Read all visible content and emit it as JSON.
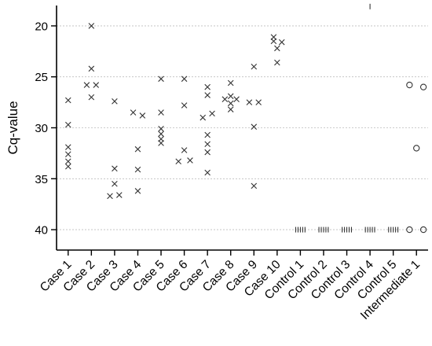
{
  "chart_data": {
    "type": "scatter",
    "ylabel": "Cq-value",
    "xlabel": "",
    "title": "",
    "y_axis": {
      "inverted": true,
      "ylim": [
        18,
        42
      ],
      "ticks": [
        20,
        25,
        30,
        35,
        40
      ]
    },
    "grid": "horizontal dotted at y ticks",
    "legend": "none",
    "categories": [
      "Case 1",
      "Case 2",
      "Case 3",
      "Case 4",
      "Case 5",
      "Case 6",
      "Case 7",
      "Case 8",
      "Case 9",
      "Case 10",
      "Control 1",
      "Control 2",
      "Control 3",
      "Control 4",
      "Control 5",
      "Intermediate 1"
    ],
    "series": [
      {
        "marker": "x",
        "points": [
          {
            "cat": 0,
            "dx": 0.0,
            "y": 27.3
          },
          {
            "cat": 0,
            "dx": 0.0,
            "y": 29.7
          },
          {
            "cat": 0,
            "dx": 0.0,
            "y": 31.9
          },
          {
            "cat": 0,
            "dx": 0.0,
            "y": 32.6
          },
          {
            "cat": 0,
            "dx": 0.0,
            "y": 33.3
          },
          {
            "cat": 0,
            "dx": 0.0,
            "y": 33.8
          },
          {
            "cat": 1,
            "dx": 0.0,
            "y": 20.0
          },
          {
            "cat": 1,
            "dx": 0.0,
            "y": 24.2
          },
          {
            "cat": 1,
            "dx": 0.0,
            "y": 27.0
          },
          {
            "cat": 1,
            "dx": -0.2,
            "y": 25.8
          },
          {
            "cat": 1,
            "dx": 0.2,
            "y": 25.8
          },
          {
            "cat": 2,
            "dx": 0.0,
            "y": 27.4
          },
          {
            "cat": 2,
            "dx": 0.0,
            "y": 34.0
          },
          {
            "cat": 2,
            "dx": 0.0,
            "y": 35.5
          },
          {
            "cat": 2,
            "dx": -0.2,
            "y": 36.7
          },
          {
            "cat": 2,
            "dx": 0.2,
            "y": 36.6
          },
          {
            "cat": 3,
            "dx": -0.2,
            "y": 28.5
          },
          {
            "cat": 3,
            "dx": 0.2,
            "y": 28.8
          },
          {
            "cat": 3,
            "dx": 0.0,
            "y": 32.1
          },
          {
            "cat": 3,
            "dx": 0.0,
            "y": 34.1
          },
          {
            "cat": 3,
            "dx": 0.0,
            "y": 36.2
          },
          {
            "cat": 4,
            "dx": 0.0,
            "y": 25.2
          },
          {
            "cat": 4,
            "dx": 0.0,
            "y": 28.5
          },
          {
            "cat": 4,
            "dx": 0.0,
            "y": 30.1
          },
          {
            "cat": 4,
            "dx": 0.0,
            "y": 30.6
          },
          {
            "cat": 4,
            "dx": 0.0,
            "y": 31.1
          },
          {
            "cat": 4,
            "dx": 0.0,
            "y": 31.5
          },
          {
            "cat": 5,
            "dx": 0.0,
            "y": 25.2
          },
          {
            "cat": 5,
            "dx": 0.0,
            "y": 27.8
          },
          {
            "cat": 5,
            "dx": 0.0,
            "y": 32.2
          },
          {
            "cat": 5,
            "dx": -0.25,
            "y": 33.3
          },
          {
            "cat": 5,
            "dx": 0.25,
            "y": 33.2
          },
          {
            "cat": 6,
            "dx": 0.0,
            "y": 26.0
          },
          {
            "cat": 6,
            "dx": 0.0,
            "y": 26.8
          },
          {
            "cat": 6,
            "dx": -0.2,
            "y": 29.0
          },
          {
            "cat": 6,
            "dx": 0.2,
            "y": 28.6
          },
          {
            "cat": 6,
            "dx": 0.0,
            "y": 30.7
          },
          {
            "cat": 6,
            "dx": 0.0,
            "y": 31.6
          },
          {
            "cat": 6,
            "dx": 0.0,
            "y": 32.4
          },
          {
            "cat": 6,
            "dx": 0.0,
            "y": 34.4
          },
          {
            "cat": 7,
            "dx": 0.0,
            "y": 25.6
          },
          {
            "cat": 7,
            "dx": -0.25,
            "y": 27.2
          },
          {
            "cat": 7,
            "dx": 0.25,
            "y": 27.2
          },
          {
            "cat": 7,
            "dx": 0.0,
            "y": 26.9
          },
          {
            "cat": 7,
            "dx": 0.0,
            "y": 27.6
          },
          {
            "cat": 7,
            "dx": 0.0,
            "y": 28.2
          },
          {
            "cat": 8,
            "dx": 0.0,
            "y": 24.0
          },
          {
            "cat": 8,
            "dx": -0.2,
            "y": 27.5
          },
          {
            "cat": 8,
            "dx": 0.2,
            "y": 27.5
          },
          {
            "cat": 8,
            "dx": 0.0,
            "y": 29.9
          },
          {
            "cat": 8,
            "dx": 0.0,
            "y": 35.7
          },
          {
            "cat": 9,
            "dx": -0.15,
            "y": 21.1
          },
          {
            "cat": 9,
            "dx": -0.15,
            "y": 21.5
          },
          {
            "cat": 9,
            "dx": 0.2,
            "y": 21.6
          },
          {
            "cat": 9,
            "dx": 0.0,
            "y": 22.2
          },
          {
            "cat": 9,
            "dx": 0.0,
            "y": 23.6
          }
        ]
      },
      {
        "marker": "bar",
        "points": [
          {
            "cat": 10,
            "dx": -0.2,
            "y": 40
          },
          {
            "cat": 10,
            "dx": -0.1,
            "y": 40
          },
          {
            "cat": 10,
            "dx": 0.0,
            "y": 40
          },
          {
            "cat": 10,
            "dx": 0.1,
            "y": 40
          },
          {
            "cat": 10,
            "dx": 0.2,
            "y": 40
          },
          {
            "cat": 11,
            "dx": -0.2,
            "y": 40
          },
          {
            "cat": 11,
            "dx": -0.1,
            "y": 40
          },
          {
            "cat": 11,
            "dx": 0.0,
            "y": 40
          },
          {
            "cat": 11,
            "dx": 0.1,
            "y": 40
          },
          {
            "cat": 11,
            "dx": 0.2,
            "y": 40
          },
          {
            "cat": 12,
            "dx": -0.2,
            "y": 40
          },
          {
            "cat": 12,
            "dx": -0.1,
            "y": 40
          },
          {
            "cat": 12,
            "dx": 0.0,
            "y": 40
          },
          {
            "cat": 12,
            "dx": 0.1,
            "y": 40
          },
          {
            "cat": 12,
            "dx": 0.2,
            "y": 40
          },
          {
            "cat": 13,
            "dx": 0.0,
            "y": 18.1
          },
          {
            "cat": 13,
            "dx": -0.2,
            "y": 40
          },
          {
            "cat": 13,
            "dx": -0.1,
            "y": 40
          },
          {
            "cat": 13,
            "dx": 0.0,
            "y": 40
          },
          {
            "cat": 13,
            "dx": 0.1,
            "y": 40
          },
          {
            "cat": 13,
            "dx": 0.2,
            "y": 40
          },
          {
            "cat": 14,
            "dx": -0.2,
            "y": 40
          },
          {
            "cat": 14,
            "dx": -0.1,
            "y": 40
          },
          {
            "cat": 14,
            "dx": 0.0,
            "y": 40
          },
          {
            "cat": 14,
            "dx": 0.1,
            "y": 40
          },
          {
            "cat": 14,
            "dx": 0.2,
            "y": 40
          }
        ]
      },
      {
        "marker": "circle",
        "points": [
          {
            "cat": 15,
            "dx": -0.3,
            "y": 25.8
          },
          {
            "cat": 15,
            "dx": 0.3,
            "y": 26.0
          },
          {
            "cat": 15,
            "dx": 0.0,
            "y": 32.0
          },
          {
            "cat": 15,
            "dx": -0.3,
            "y": 40.0
          },
          {
            "cat": 15,
            "dx": 0.3,
            "y": 40.0
          }
        ]
      }
    ]
  }
}
